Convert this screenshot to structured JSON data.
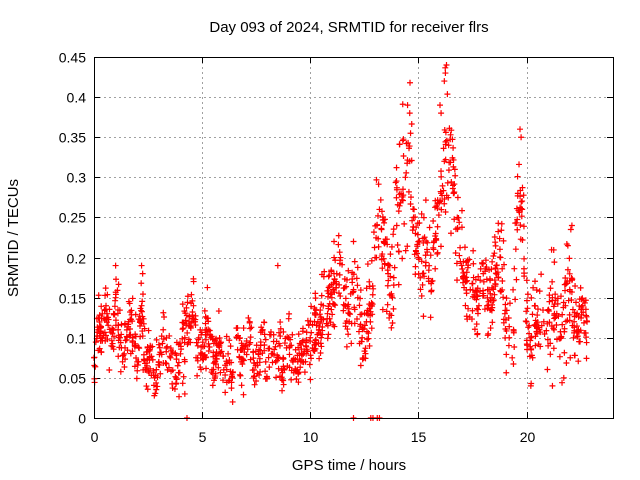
{
  "chart_data": {
    "type": "scatter",
    "title": "Day 093 of 2024, SRMTID for receiver flrs",
    "xlabel": "GPS time / hours",
    "ylabel": "SRMTID / TECUs",
    "xlim": [
      0,
      24
    ],
    "ylim": [
      0,
      0.45
    ],
    "x_ticks": [
      0,
      5,
      10,
      15,
      20
    ],
    "x_tick_labels": [
      "0",
      "5",
      "10",
      "15",
      "20"
    ],
    "y_ticks": [
      0,
      0.05,
      0.1,
      0.15,
      0.2,
      0.25,
      0.3,
      0.35,
      0.4,
      0.45
    ],
    "y_tick_labels": [
      "0",
      "0.05",
      "0.1",
      "0.15",
      "0.2",
      "0.25",
      "0.3",
      "0.35",
      "0.4",
      "0.45"
    ],
    "grid": true,
    "marker": "+",
    "color": "#ff0000",
    "series": [
      {
        "x": [
          0.0,
          0.2,
          0.4,
          0.6,
          0.8,
          1.0,
          1.2,
          1.4,
          1.6,
          1.8,
          2.0,
          2.2,
          2.4,
          2.6,
          2.8,
          3.0,
          3.2,
          3.4,
          3.6,
          3.8,
          4.0,
          4.2,
          4.4,
          4.6,
          4.8,
          5.0,
          5.2,
          5.4,
          5.6,
          5.8,
          6.0,
          6.2,
          6.4,
          6.6,
          6.8,
          7.0,
          7.2,
          7.4,
          7.6,
          7.8,
          8.0,
          8.2,
          8.4,
          8.6,
          8.8,
          9.0,
          9.2,
          9.4,
          9.6,
          9.8,
          10.0,
          10.2,
          10.4,
          10.6,
          10.8,
          11.0,
          11.2,
          11.4,
          11.6,
          11.8,
          12.0,
          12.2,
          12.4,
          12.6,
          12.8,
          13.0,
          13.2,
          13.4,
          13.6,
          13.8,
          14.0,
          14.2,
          14.4,
          14.6,
          14.8,
          15.0,
          15.2,
          15.4,
          15.6,
          15.8,
          16.0,
          16.2,
          16.4,
          16.6,
          16.8,
          17.0,
          17.2,
          17.4,
          17.6,
          17.8,
          18.0,
          18.2,
          18.4,
          18.6,
          18.8,
          19.0,
          19.2,
          19.4,
          19.6,
          19.8,
          20.0,
          20.2,
          20.4,
          20.6,
          20.8,
          21.0,
          21.2,
          21.4,
          21.6,
          21.8,
          22.0,
          22.2,
          22.4,
          22.6,
          22.8
        ],
        "y": [
          0.075,
          0.11,
          0.1,
          0.13,
          0.09,
          0.15,
          0.1,
          0.08,
          0.12,
          0.1,
          0.07,
          0.14,
          0.06,
          0.09,
          0.05,
          0.07,
          0.11,
          0.06,
          0.08,
          0.05,
          0.08,
          0.1,
          0.12,
          0.14,
          0.09,
          0.08,
          0.11,
          0.1,
          0.07,
          0.09,
          0.06,
          0.08,
          0.05,
          0.1,
          0.07,
          0.09,
          0.12,
          0.06,
          0.08,
          0.11,
          0.05,
          0.08,
          0.07,
          0.09,
          0.06,
          0.1,
          0.07,
          0.06,
          0.08,
          0.09,
          0.1,
          0.12,
          0.11,
          0.14,
          0.13,
          0.15,
          0.17,
          0.2,
          0.14,
          0.12,
          0.16,
          0.15,
          0.1,
          0.12,
          0.14,
          0.2,
          0.26,
          0.22,
          0.18,
          0.15,
          0.24,
          0.28,
          0.3,
          0.32,
          0.26,
          0.2,
          0.18,
          0.21,
          0.17,
          0.23,
          0.27,
          0.32,
          0.34,
          0.29,
          0.25,
          0.19,
          0.17,
          0.16,
          0.15,
          0.14,
          0.18,
          0.16,
          0.15,
          0.19,
          0.2,
          0.13,
          0.1,
          0.11,
          0.28,
          0.26,
          0.12,
          0.1,
          0.14,
          0.11,
          0.12,
          0.09,
          0.15,
          0.13,
          0.1,
          0.14,
          0.16,
          0.12,
          0.11,
          0.14,
          0.12
        ],
        "spread": [
          0.03,
          0.035,
          0.03,
          0.04,
          0.035,
          0.03,
          0.035,
          0.03,
          0.03,
          0.035,
          0.03,
          0.04,
          0.025,
          0.03,
          0.025,
          0.03,
          0.035,
          0.025,
          0.03,
          0.025,
          0.035,
          0.04,
          0.035,
          0.03,
          0.035,
          0.03,
          0.035,
          0.03,
          0.03,
          0.035,
          0.025,
          0.03,
          0.025,
          0.035,
          0.03,
          0.035,
          0.03,
          0.025,
          0.03,
          0.035,
          0.03,
          0.035,
          0.03,
          0.035,
          0.03,
          0.035,
          0.03,
          0.025,
          0.03,
          0.035,
          0.035,
          0.04,
          0.035,
          0.04,
          0.035,
          0.04,
          0.05,
          0.04,
          0.04,
          0.04,
          0.05,
          0.05,
          0.04,
          0.05,
          0.05,
          0.05,
          0.07,
          0.06,
          0.05,
          0.05,
          0.07,
          0.08,
          0.08,
          0.07,
          0.07,
          0.06,
          0.06,
          0.05,
          0.05,
          0.06,
          0.07,
          0.08,
          0.09,
          0.07,
          0.06,
          0.05,
          0.04,
          0.04,
          0.04,
          0.04,
          0.05,
          0.04,
          0.04,
          0.06,
          0.06,
          0.05,
          0.04,
          0.04,
          0.06,
          0.06,
          0.04,
          0.04,
          0.05,
          0.05,
          0.05,
          0.05,
          0.05,
          0.05,
          0.05,
          0.05,
          0.05,
          0.04,
          0.04,
          0.04,
          0.04
        ]
      }
    ],
    "zero_points_x": [
      4.3,
      12.0,
      12.8,
      12.9,
      13.1,
      13.2
    ],
    "outlier_points": [
      [
        16.3,
        0.44
      ],
      [
        16.25,
        0.43
      ],
      [
        16.2,
        0.42
      ],
      [
        14.5,
        0.39
      ],
      [
        14.6,
        0.38
      ],
      [
        16.0,
        0.39
      ],
      [
        16.05,
        0.38
      ],
      [
        19.7,
        0.36
      ],
      [
        19.75,
        0.35
      ],
      [
        22.1,
        0.24
      ],
      [
        22.05,
        0.235
      ],
      [
        2.2,
        0.19
      ],
      [
        2.25,
        0.18
      ],
      [
        1.0,
        0.19
      ],
      [
        8.5,
        0.19
      ],
      [
        11.1,
        0.22
      ],
      [
        12.0,
        0.22
      ],
      [
        20.2,
        0.04
      ],
      [
        21.2,
        0.04
      ],
      [
        4.2,
        0.03
      ]
    ]
  }
}
